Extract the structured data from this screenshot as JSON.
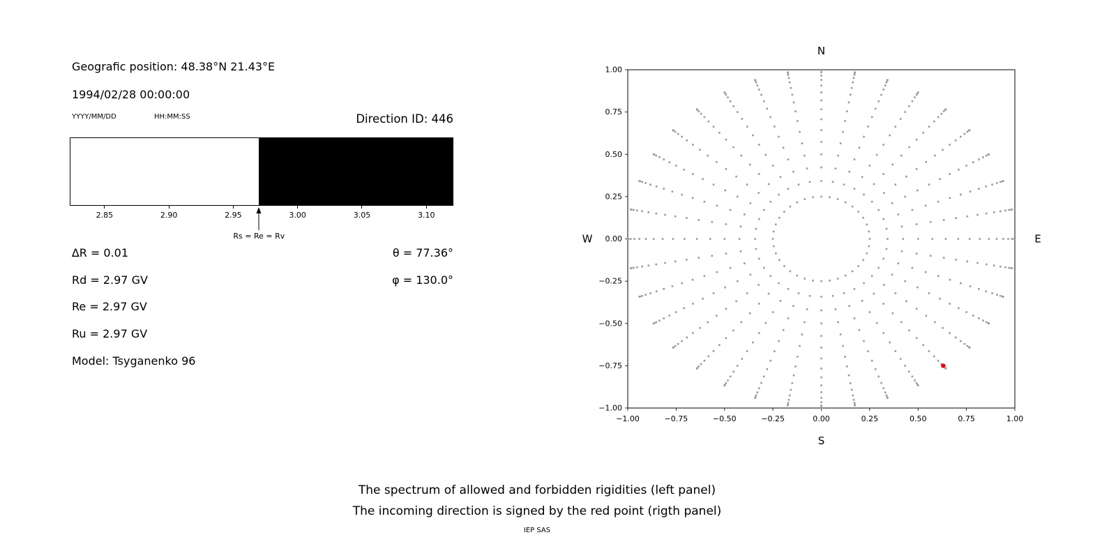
{
  "left_panel": {
    "geo_position": "Geografic position: 48.38°N 21.43°E",
    "datetime": "1994/02/28 00:00:00",
    "date_format_label": "YYYY/MM/DD",
    "time_format_label": "HH:MM:SS",
    "direction_id": "Direction ID: 446",
    "arrow_label": "Rs = Re = Rv",
    "params_left": [
      "∆R = 0.01",
      "Rd = 2.97 GV",
      "Re = 2.97 GV",
      "Ru = 2.97 GV",
      "Model: Tsyganenko 96"
    ],
    "params_right": [
      "θ = 77.36°",
      "φ = 130.0°"
    ]
  },
  "right_panel": {
    "compass": {
      "top": "N",
      "bottom": "S",
      "left": "W",
      "right": "E"
    }
  },
  "caption": {
    "line1": "The spectrum of allowed and forbidden rigidities (left panel)",
    "line2": "The incoming direction is signed by the red point (rigth panel)",
    "credit": "IEP SAS"
  },
  "chart_data": [
    {
      "type": "area",
      "description": "Rigidity spectrum band: white region = allowed rigidities, black region = forbidden rigidities",
      "x_range": [
        2.823,
        3.121
      ],
      "x_ticks": [
        2.85,
        2.9,
        2.95,
        3.0,
        3.05,
        3.1
      ],
      "boundary": 2.97,
      "allowed_region": [
        2.823,
        2.97
      ],
      "forbidden_region": [
        2.97,
        3.121
      ],
      "annotation": "Rs = Re = Rv",
      "colors": {
        "allowed": "#ffffff",
        "forbidden": "#000000"
      }
    },
    {
      "type": "scatter",
      "description": "Grid of incoming directions (radial spokes of gray dots, radius = sin(zenith)); red point marks the incoming direction",
      "xlim": [
        -1.0,
        1.0
      ],
      "ylim": [
        -1.0,
        1.0
      ],
      "x_ticks": [
        -1.0,
        -0.75,
        -0.5,
        -0.25,
        0.0,
        0.25,
        0.5,
        0.75,
        1.0
      ],
      "y_ticks": [
        -1.0,
        -0.75,
        -0.5,
        -0.25,
        0.0,
        0.25,
        0.5,
        0.75,
        1.0
      ],
      "compass_labels": {
        "top": "N",
        "bottom": "S",
        "left": "W",
        "right": "E"
      },
      "direction_grid": {
        "azimuth_count": 36,
        "inner_ring_radius": 0.25,
        "spoke_zenith_deg": {
          "min": 20,
          "max": 90,
          "step": 5
        },
        "radius_rule": "sin(zenith)"
      },
      "red_point": {
        "x": 0.63,
        "y": -0.75
      },
      "marker_color": "#9a9a9a",
      "red_point_color": "#e8000b"
    }
  ]
}
